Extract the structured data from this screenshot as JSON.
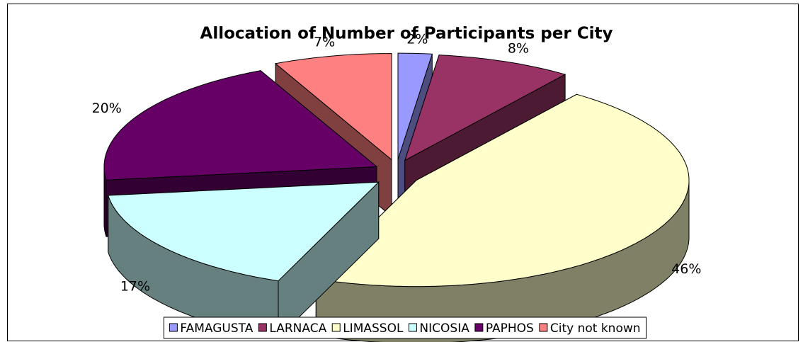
{
  "chart_data": {
    "type": "pie",
    "title": "Allocation of Number of Participants per City",
    "categories": [
      "FAMAGUSTA",
      "LARNACA",
      "LIMASSOL",
      "NICOSIA",
      "PAPHOS",
      "City not known"
    ],
    "values": [
      2,
      8,
      46,
      17,
      20,
      7
    ],
    "value_labels": [
      "2%",
      "8%",
      "46%",
      "17%",
      "20%",
      "7%"
    ],
    "colors": [
      "#9999ff",
      "#993366",
      "#ffffcc",
      "#ccffff",
      "#660066",
      "#ff8080"
    ],
    "legend": "bottom"
  }
}
